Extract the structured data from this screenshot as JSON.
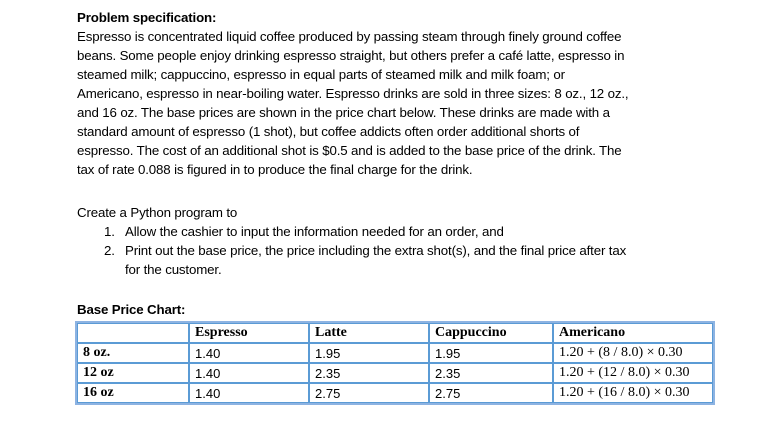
{
  "heading": "Problem specification:",
  "paragraph_lines": [
    "Espresso is concentrated liquid coffee produced by passing steam through finely ground coffee",
    "beans. Some people enjoy drinking espresso straight, but others prefer a café latte, espresso in",
    "steamed milk; cappuccino, espresso in equal parts of steamed milk and milk foam; or",
    "Americano, espresso in near-boiling water. Espresso drinks are sold in three sizes: 8 oz., 12 oz.,",
    "and 16 oz. The base prices are shown in the price chart below. These drinks are made with a",
    "standard amount of espresso (1 shot), but coffee addicts often order additional shorts of",
    "espresso. The cost of an additional shot is $0.5 and is added to the base price of the drink. The",
    "tax of rate 0.088 is figured in to produce the final charge for the drink."
  ],
  "task_intro": "Create a Python program to",
  "task_items": [
    {
      "number": "1.",
      "lines": [
        "Allow the cashier to input the information needed for an order, and"
      ]
    },
    {
      "number": "2.",
      "lines": [
        "Print out the base price, the price including the extra shot(s), and the final price after tax",
        "for the customer."
      ]
    }
  ],
  "table_title": "Base Price Chart:",
  "table": {
    "header": [
      "",
      "Espresso",
      "Latte",
      "Cappuccino",
      "Americano"
    ],
    "rows": [
      [
        "8 oz.",
        "1.40",
        "1.95",
        "1.95",
        "1.20 + (8 / 8.0) × 0.30"
      ],
      [
        "12 oz",
        "1.40",
        "2.35",
        "2.35",
        "1.20 + (12 / 8.0) × 0.30"
      ],
      [
        "16 oz",
        "1.40",
        "2.75",
        "2.75",
        "1.20 + (16 / 8.0) × 0.30"
      ]
    ]
  }
}
